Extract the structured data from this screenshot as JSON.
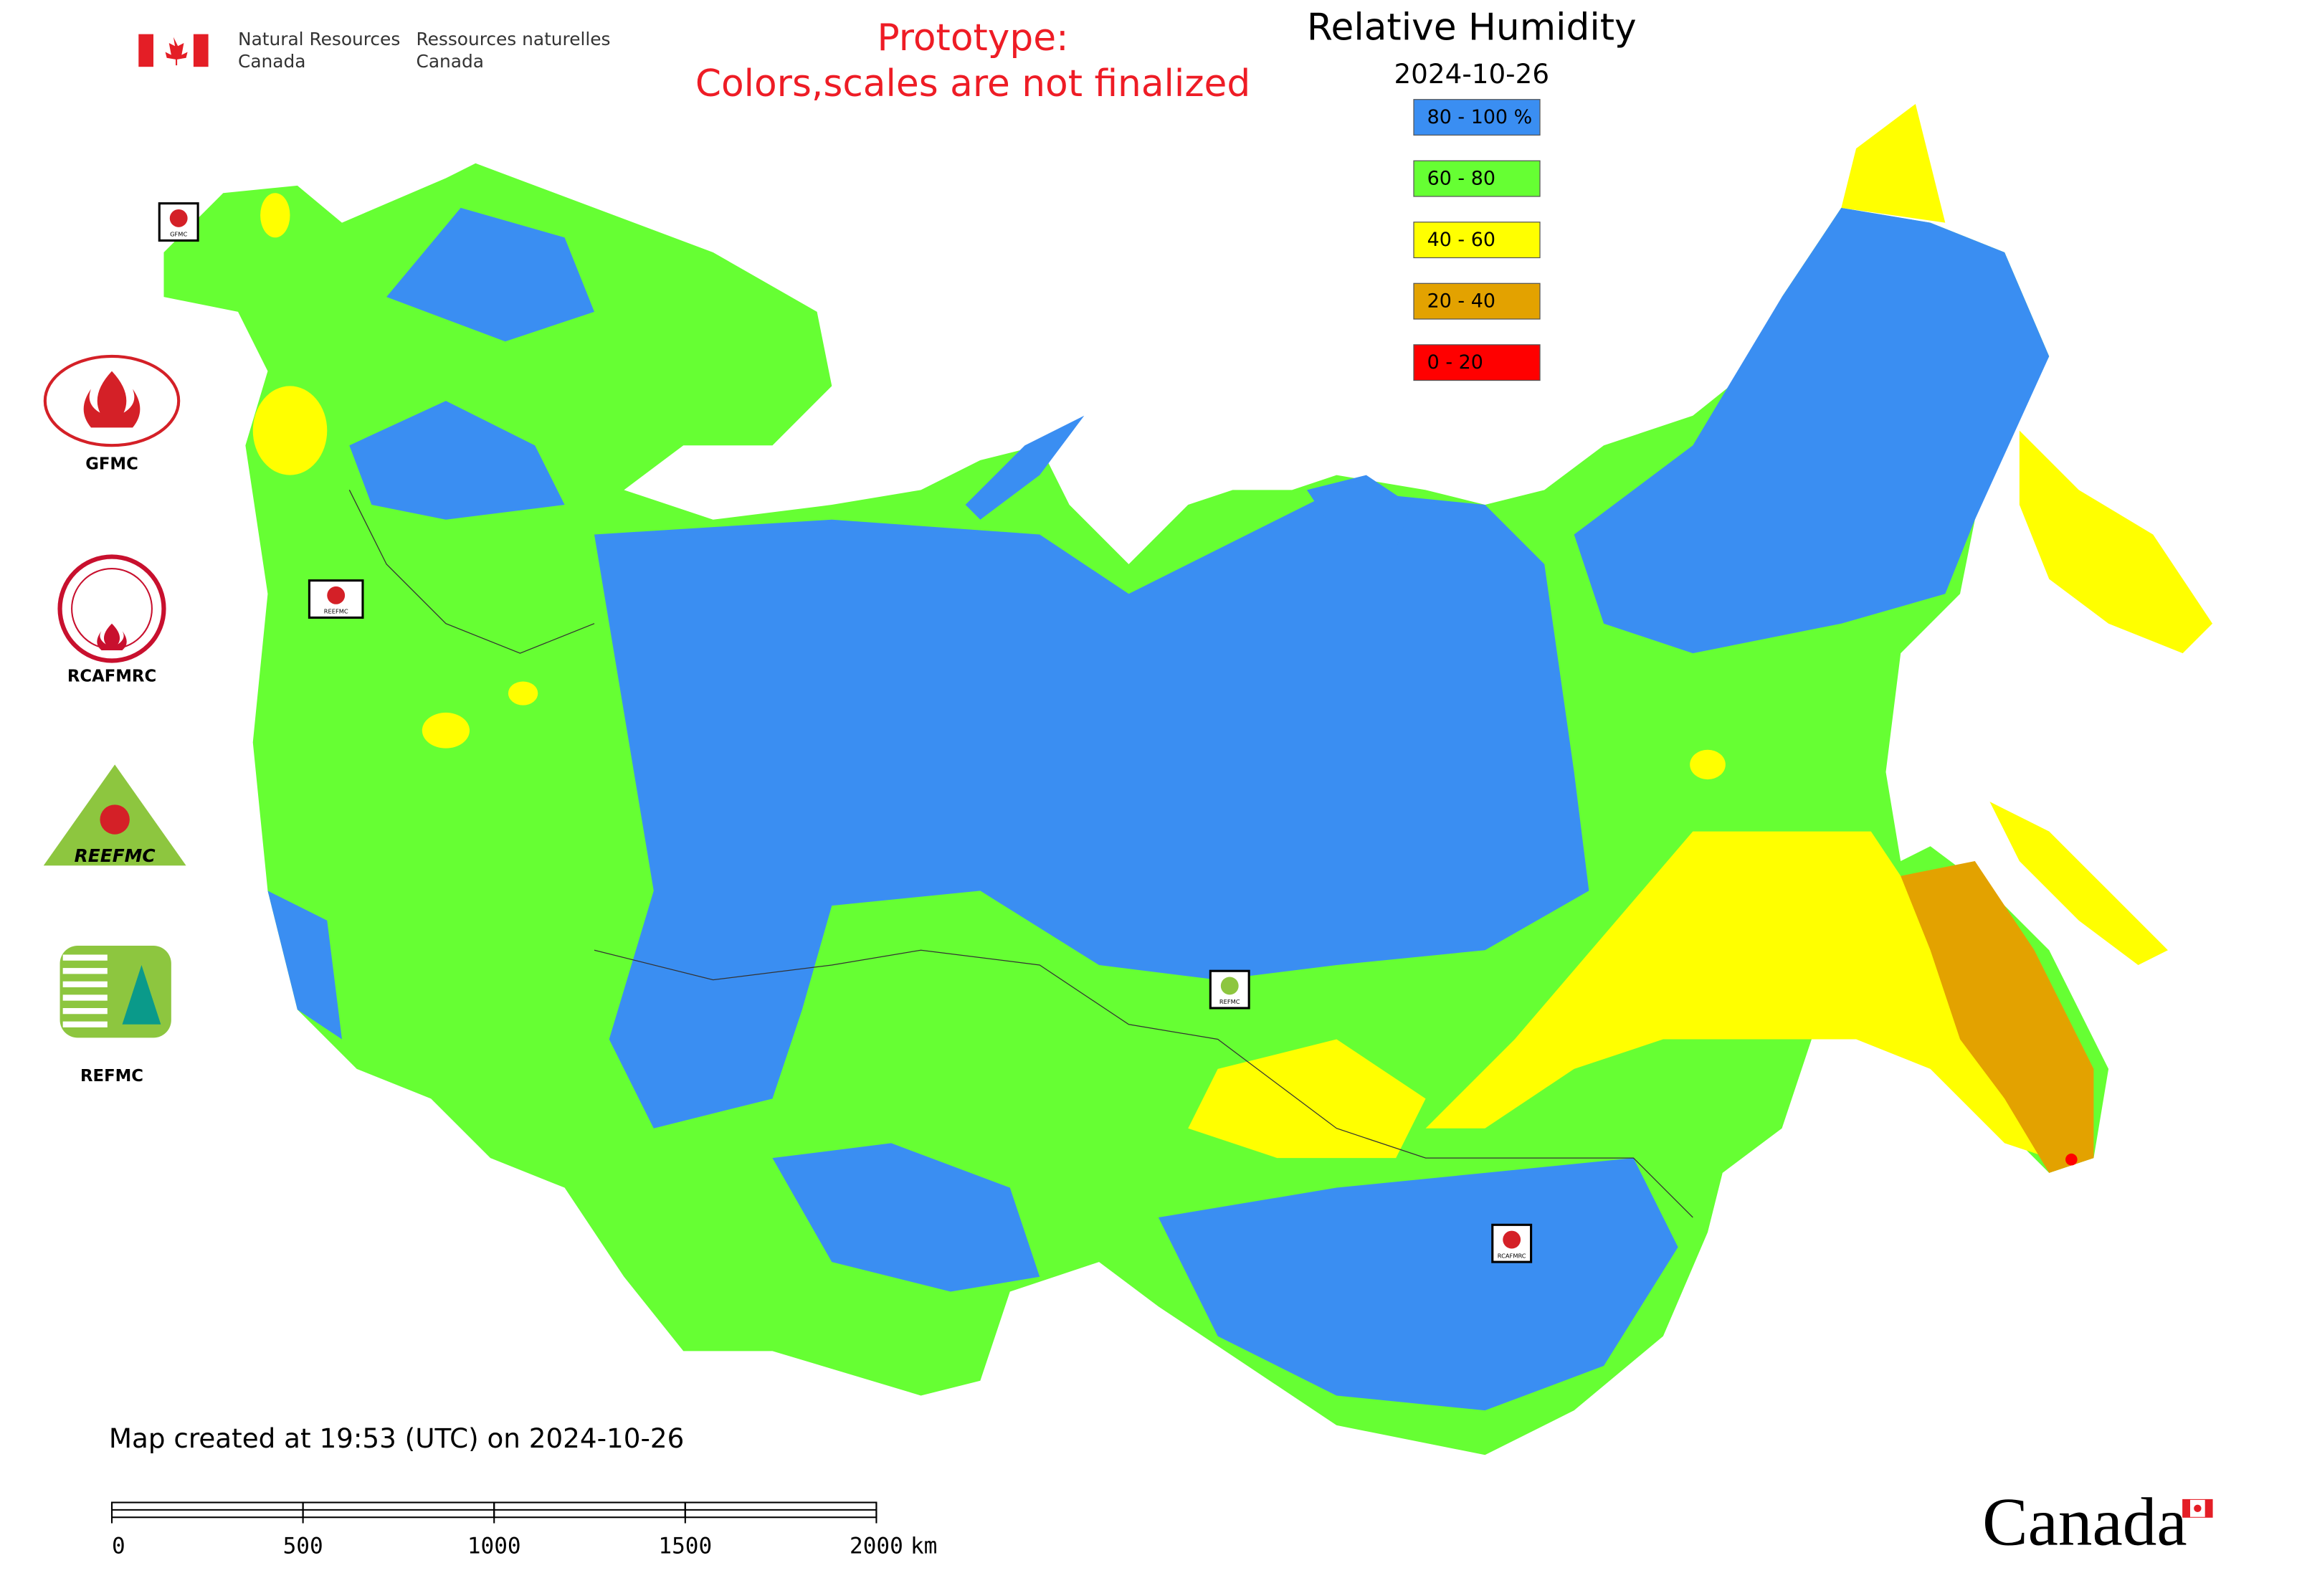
{
  "header": {
    "agency_en": [
      "Natural Resources",
      "Canada"
    ],
    "agency_fr": [
      "Ressources naturelles",
      "Canada"
    ],
    "notice": [
      "Prototype:",
      "Colors,scales are not finalized"
    ]
  },
  "legend": {
    "title": "Relative Humidity",
    "date": "2024-10-26",
    "items": [
      {
        "label": "80 - 100 %",
        "color": "#3a8ef2"
      },
      {
        "label": "60 - 80",
        "color": "#66ff33"
      },
      {
        "label": "40 - 60",
        "color": "#ffff00"
      },
      {
        "label": "20 - 40",
        "color": "#e3a200"
      },
      {
        "label": "0 - 20",
        "color": "#ff0000"
      }
    ]
  },
  "logos": [
    {
      "label": "GFMC"
    },
    {
      "label": "RCAFMRC"
    },
    {
      "label": "REEFMC"
    },
    {
      "label": "REFMC"
    }
  ],
  "map_markers": [
    {
      "label": "GFMC"
    },
    {
      "label": "REEFMC"
    },
    {
      "label": "REFMC"
    },
    {
      "label": "RCAFMRC"
    }
  ],
  "footer": {
    "created": "Map created at 19:53 (UTC) on 2024-10-26",
    "wordmark": "Canada"
  },
  "scale_bar": {
    "ticks": [
      0,
      500,
      1000,
      1500,
      2000
    ],
    "unit": "km"
  }
}
